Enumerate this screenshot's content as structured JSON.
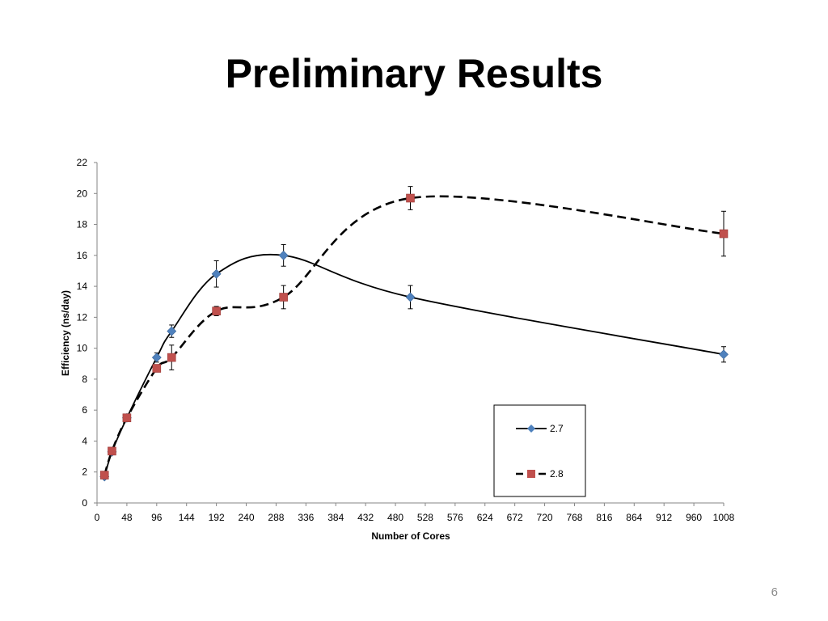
{
  "slide": {
    "title": "Preliminary Results",
    "page_number": "6"
  },
  "chart_data": {
    "type": "line",
    "xlabel": "Number of Cores",
    "ylabel": "Efficiency (ns/day)",
    "xlim": [
      0,
      1008
    ],
    "ylim": [
      0,
      22
    ],
    "x_ticks": [
      0,
      48,
      96,
      144,
      192,
      240,
      288,
      336,
      384,
      432,
      480,
      528,
      576,
      624,
      672,
      720,
      768,
      816,
      864,
      912,
      960,
      1008
    ],
    "y_ticks": [
      0,
      2,
      4,
      6,
      8,
      10,
      12,
      14,
      16,
      18,
      20,
      22
    ],
    "grid": false,
    "legend_position": "lower-right",
    "series": [
      {
        "name": "2.7",
        "color": "#4f81bd",
        "line_color": "#000000",
        "line_style": "solid",
        "marker": "diamond",
        "x": [
          12,
          24,
          48,
          96,
          120,
          192,
          300,
          504,
          1008
        ],
        "y": [
          1.7,
          3.3,
          5.5,
          9.4,
          11.1,
          14.8,
          16.0,
          13.3,
          9.6
        ],
        "error": [
          0.1,
          0.1,
          0.15,
          0.3,
          0.4,
          0.85,
          0.7,
          0.75,
          0.5
        ]
      },
      {
        "name": "2.8",
        "color": "#c0504d",
        "line_color": "#000000",
        "line_style": "dashed",
        "marker": "square",
        "x": [
          12,
          24,
          48,
          96,
          120,
          192,
          300,
          504,
          1008
        ],
        "y": [
          1.8,
          3.35,
          5.5,
          8.7,
          9.4,
          12.4,
          13.3,
          19.7,
          17.4
        ],
        "error": [
          0.1,
          0.1,
          0.15,
          0.2,
          0.8,
          0.3,
          0.75,
          0.75,
          1.45
        ]
      }
    ]
  }
}
